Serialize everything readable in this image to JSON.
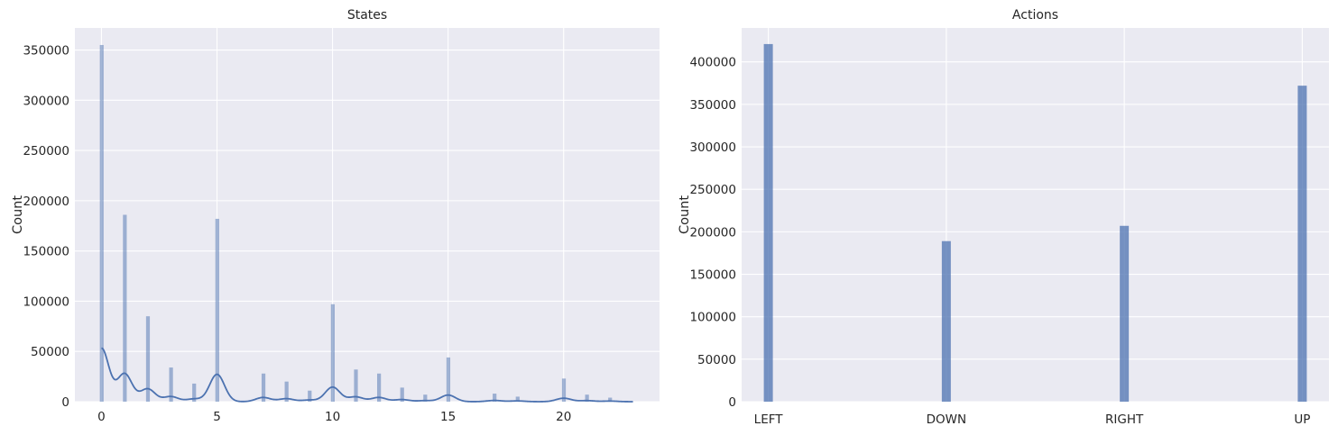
{
  "chart_data": [
    {
      "type": "histogram",
      "title": "States",
      "xlabel": "",
      "ylabel": "Count",
      "xlim": [
        -1.15,
        24.15
      ],
      "ylim": [
        0,
        372000
      ],
      "x_ticks": [
        0,
        5,
        10,
        15,
        20
      ],
      "y_ticks": [
        0,
        50000,
        100000,
        150000,
        200000,
        250000,
        300000,
        350000
      ],
      "grid": true,
      "kde": true,
      "colors": {
        "bar": "#4c72b0",
        "bar_opacity": 0.5,
        "kde": "#4c72b0",
        "background": "#eaeaf2",
        "grid": "#ffffff"
      },
      "bars": [
        {
          "x": 0,
          "count": 355000
        },
        {
          "x": 1,
          "count": 186000
        },
        {
          "x": 2,
          "count": 85000
        },
        {
          "x": 3,
          "count": 34000
        },
        {
          "x": 4,
          "count": 18000
        },
        {
          "x": 5,
          "count": 182000
        },
        {
          "x": 7,
          "count": 28000
        },
        {
          "x": 8,
          "count": 20000
        },
        {
          "x": 9,
          "count": 11000
        },
        {
          "x": 10,
          "count": 97000
        },
        {
          "x": 11,
          "count": 32000
        },
        {
          "x": 12,
          "count": 28000
        },
        {
          "x": 13,
          "count": 14000
        },
        {
          "x": 14,
          "count": 7000
        },
        {
          "x": 15,
          "count": 44000
        },
        {
          "x": 17,
          "count": 8000
        },
        {
          "x": 18,
          "count": 5000
        },
        {
          "x": 20,
          "count": 23000
        },
        {
          "x": 21,
          "count": 7000
        },
        {
          "x": 22,
          "count": 4000
        }
      ],
      "kde_bandwidth": 0.32,
      "kde_range": [
        0,
        23
      ]
    },
    {
      "type": "bar",
      "title": "Actions",
      "xlabel": "",
      "ylabel": "Count",
      "categories": [
        "LEFT",
        "DOWN",
        "RIGHT",
        "UP"
      ],
      "values": [
        421000,
        189000,
        207000,
        372000
      ],
      "xlim": [
        -0.15,
        3.15
      ],
      "ylim": [
        0,
        440000
      ],
      "y_ticks": [
        0,
        50000,
        100000,
        150000,
        200000,
        250000,
        300000,
        350000,
        400000
      ],
      "grid": true,
      "colors": {
        "bar": "#4c72b0",
        "bar_opacity": 0.75,
        "background": "#eaeaf2",
        "grid": "#ffffff"
      }
    }
  ]
}
